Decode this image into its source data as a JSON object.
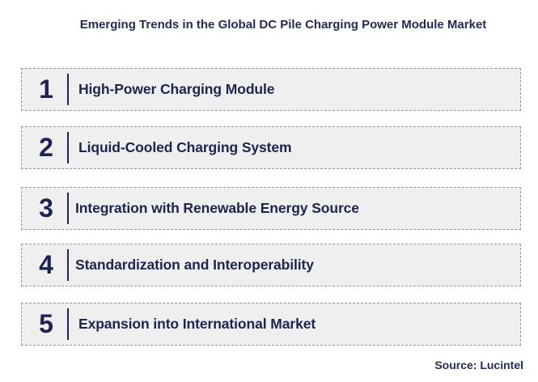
{
  "title": "Emerging Trends in the Global DC Pile Charging Power Module Market",
  "trends": [
    {
      "number": "1",
      "label": "High-Power Charging Module"
    },
    {
      "number": "2",
      "label": "Liquid-Cooled Charging System"
    },
    {
      "number": "3",
      "label": "Integration with Renewable Energy Source"
    },
    {
      "number": "4",
      "label": "Standardization and Interoperability"
    },
    {
      "number": "5",
      "label": "Expansion into International Market"
    }
  ],
  "source": "Source: Lucintel",
  "colors": {
    "text": "#1c2450",
    "box_fill": "#efefef",
    "box_border": "#9a9a9a"
  }
}
